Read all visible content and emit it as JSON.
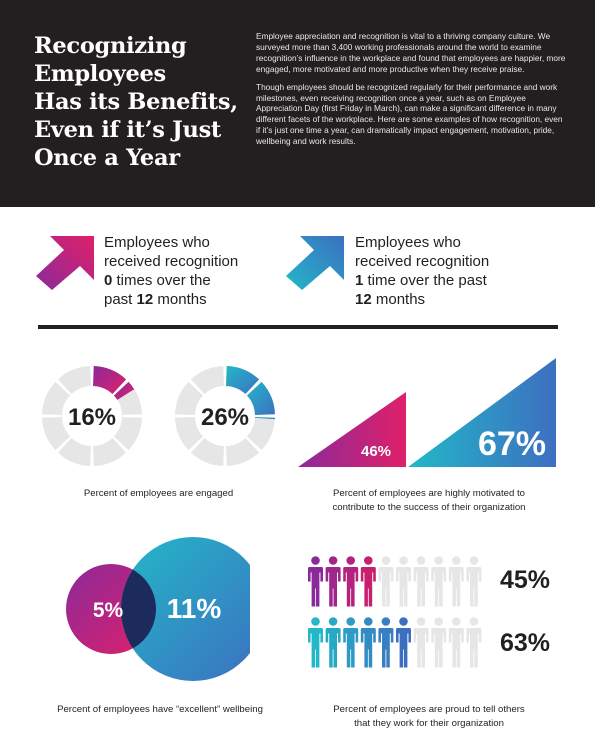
{
  "header": {
    "title_lines": [
      "Recognizing",
      "Employees",
      "Has its Benefits,",
      "Even if it’s Just",
      "Once a Year"
    ],
    "intro_p1": "Employee appreciation and recognition is vital to a thriving company culture. We surveyed more than 3,400 working professionals around the world to examine recognition’s influence in the workplace and found that employees are happier, more engaged, more motivated and more productive when they receive praise.",
    "intro_p2": "Though employees should be recognized regularly for their performance and work milestones, even receiving recognition once a year, such as on Employee Appreciation Day (first Friday in March), can make a significant difference in many different facets of the workplace. Here are some examples of how recognition, even if it’s just one time a year, can dramatically impact engagement, motivation, pride, wellbeing and work results."
  },
  "legend": [
    {
      "line1": "Employees who",
      "line2": "received recognition",
      "count": "0",
      "line3_rest": " times over the",
      "line4_pre": "past ",
      "months": "12",
      "line4_post": " months",
      "color": "#c81e6e"
    },
    {
      "line1": "Employees who",
      "line2": "received recognition",
      "count": "1",
      "line3_rest": " time over the past",
      "line4_pre": "",
      "months": "12",
      "line4_post": " months",
      "color": "#2cb5c6"
    }
  ],
  "colors": {
    "magenta": "#c81e6e",
    "purple": "#8a2a9a",
    "teal": "#22b8c8",
    "blue": "#3d6fc0",
    "gray": "#e6e6e6",
    "dark": "#231f20",
    "overlap": "#1d2a5c"
  },
  "engaged": {
    "zero_recognition": {
      "pct_label": "16%",
      "value": 16
    },
    "one_recognition": {
      "pct_label": "26%",
      "value": 26
    },
    "caption": "Percent of employees are engaged"
  },
  "motivated": {
    "zero_recognition": {
      "pct_label": "46%",
      "value": 46
    },
    "one_recognition": {
      "pct_label": "67%",
      "value": 67
    },
    "caption_line1": "Percent of employees are highly motivated to",
    "caption_line2": "contribute to the success of their organization"
  },
  "wellbeing": {
    "zero_recognition": {
      "pct_label": "5%",
      "value": 5
    },
    "one_recognition": {
      "pct_label": "11%",
      "value": 11
    },
    "caption": "Percent of employees have “excellent” wellbeing"
  },
  "proud": {
    "zero_recognition": {
      "pct_label": "45%",
      "value": 45
    },
    "one_recognition": {
      "pct_label": "63%",
      "value": 63
    },
    "caption_line1": "Percent of employees are proud to tell others",
    "caption_line2": "that they work for their organization"
  }
}
